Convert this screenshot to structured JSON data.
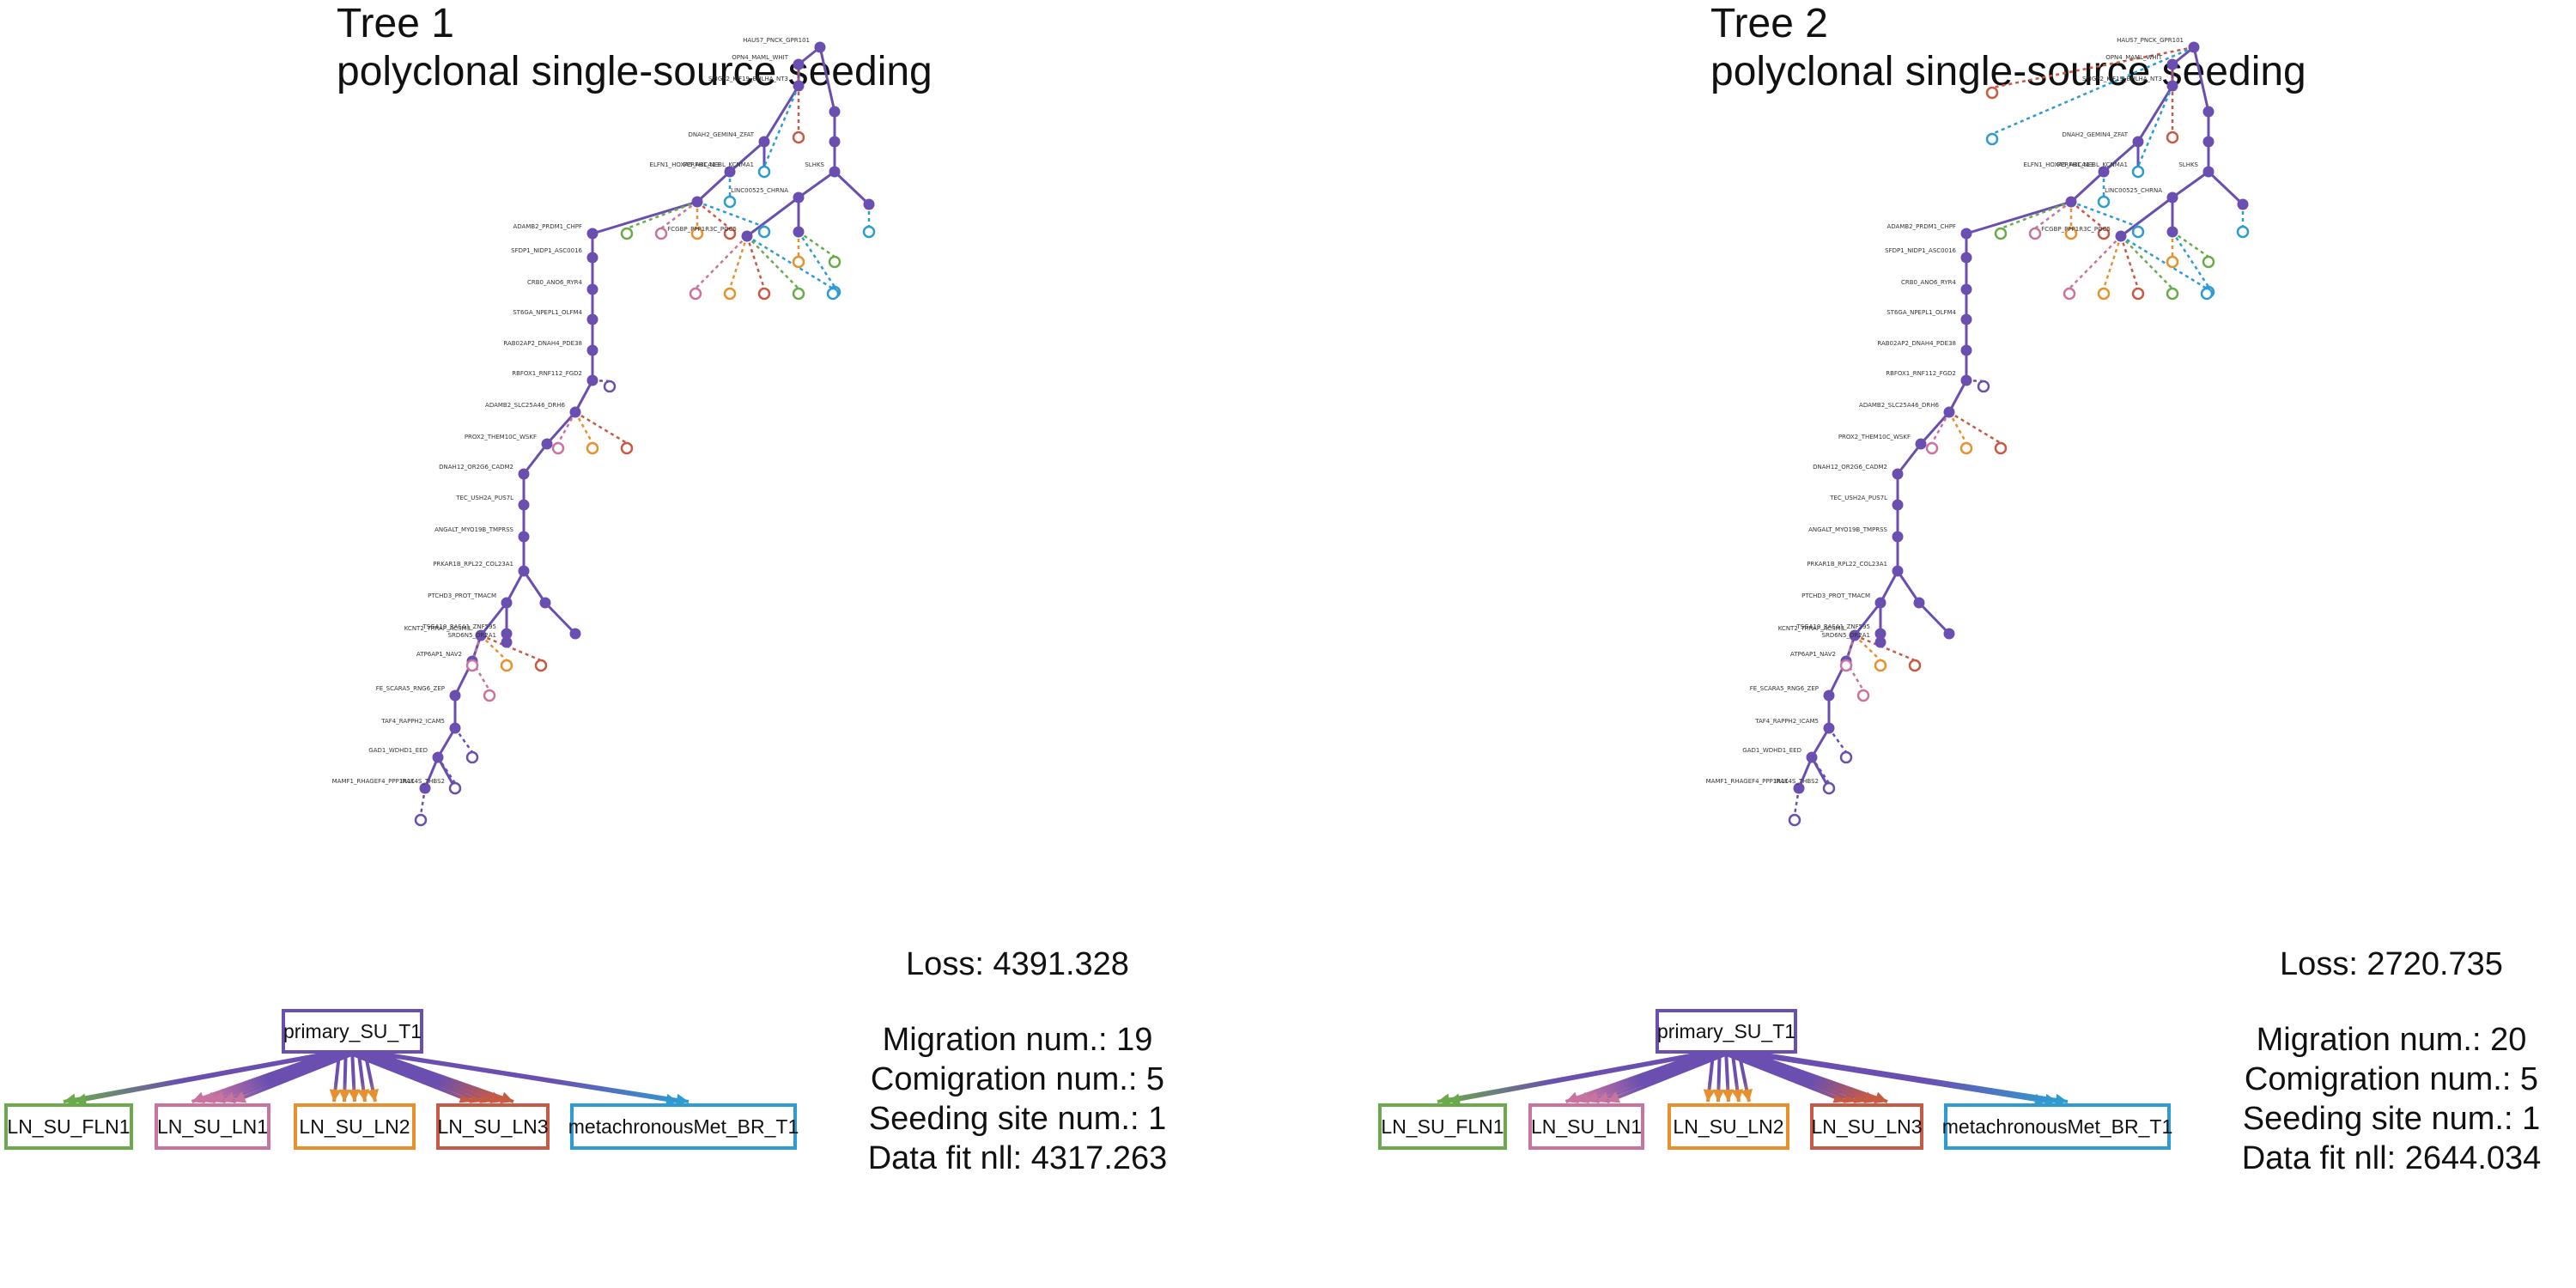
{
  "trees": [
    {
      "title": "Tree 1",
      "subtitle": "polyclonal single-source seeding",
      "metrics": {
        "loss": "Loss: 4391.328",
        "migration": "Migration num.: 19",
        "comigration": "Comigration num.: 5",
        "seeding": "Seeding site num.: 1",
        "datafit": "Data fit nll: 4317.263"
      },
      "migration_graph": {
        "source": "primary_SU_T1",
        "targets": [
          {
            "label": "LN_SU_FLN1",
            "color": "#6aaa4c",
            "edges": 2
          },
          {
            "label": "LN_SU_LN1",
            "color": "#c9739f",
            "edges": 5
          },
          {
            "label": "LN_SU_LN2",
            "color": "#e8902e",
            "edges": 5
          },
          {
            "label": "LN_SU_LN3",
            "color": "#c75a45",
            "edges": 5
          },
          {
            "label": "metachronousMet_BR_T1",
            "color": "#2f9bd1",
            "edges": 2
          }
        ]
      },
      "node_labels": [
        "HAUS7_PNCK_GPR101",
        "OPN4_MAML_WHIT",
        "STIGP2_KIF19_BHLHA_NT3",
        "DNAH2_GEMIN4_ZFAT",
        "PERFH1_NEBL_KCNMA1",
        "ELFN1_HOXA5_ABCA13",
        "SLHKS",
        "LINC00525_CHRNA",
        "ADAMB2_PRDM1_CHPF",
        "FCGBP_PPP1R3C_POC5",
        "SFDP1_NIDP1_ASC0016",
        "CRB0_ANO6_RYR4",
        "ST6GA_NPEPL1_OLFM4",
        "RAB02AP2_DNAH4_PDE38",
        "RBFOX1_RNF112_FGD2",
        "ADAMB2_SLC25A46_DRH6",
        "PROX2_THEM10C_WSKF",
        "DNAH12_OR2G6_CADM2",
        "TEC_USH2A_PUS7L",
        "ANGALT_MYO19B_TMPRSS",
        "PRKAR1B_RPL22_COL23A1",
        "PTCHD3_PROT_TMACM",
        "TSGA10_RASA1_ZNF595",
        "KCNT2_TRRAP_ACSM3",
        "SRD6N5_OR2A1",
        "ATP6AP1_NAV2",
        "FE_SCARA5_RNG6_ZEP",
        "TAF4_RAPPH2_ICAM5",
        "GAD1_WDHD1_EED",
        "MAMF1_RHAGEF4_PPP1R11",
        "IRAK4S_THBS2"
      ]
    },
    {
      "title": "Tree 2",
      "subtitle": "polyclonal single-source seeding",
      "metrics": {
        "loss": "Loss: 2720.735",
        "migration": "Migration num.: 20",
        "comigration": "Comigration num.: 5",
        "seeding": "Seeding site num.: 1",
        "datafit": "Data fit nll: 2644.034"
      },
      "migration_graph": {
        "source": "primary_SU_T1",
        "targets": [
          {
            "label": "LN_SU_FLN1",
            "color": "#6aaa4c",
            "edges": 2
          },
          {
            "label": "LN_SU_LN1",
            "color": "#c9739f",
            "edges": 5
          },
          {
            "label": "LN_SU_LN2",
            "color": "#e8902e",
            "edges": 5
          },
          {
            "label": "LN_SU_LN3",
            "color": "#c75a45",
            "edges": 5
          },
          {
            "label": "metachronousMet_BR_T1",
            "color": "#2f9bd1",
            "edges": 3
          }
        ]
      },
      "node_labels": [
        "HAUS7_PNCK_GPR101",
        "OPN4_MAML_WHIT",
        "STIGP2_KIF19_BHLHA_NT3",
        "DNAH2_GEMIN4_ZFAT",
        "PERFH1_NEBL_KCNMA1",
        "ELFN1_HOXA5_ABCA13",
        "SLHKS",
        "LINC00525_CHRNA",
        "ADAMB2_PRDM1_CHPF",
        "FCGBP_PPP1R3C_POC5",
        "SFDP1_NIDP1_ASC0016",
        "CRB0_ANO6_RYR4",
        "ST6GA_NPEPL1_OLFM4",
        "RAB02AP2_DNAH4_PDE38",
        "RBFOX1_RNF112_FGD2",
        "ADAMB2_SLC25A46_DRH6",
        "PROX2_THEM10C_WSKF",
        "DNAH12_OR2G6_CADM2",
        "TEC_USH2A_PUS7L",
        "ANGALT_MYO19B_TMPRSS",
        "PRKAR1B_RPL22_COL23A1",
        "PTCHD3_PROT_TMACM",
        "TSGA10_RASA1_ZNF595",
        "KCNT2_TRRAP_ACSM3",
        "SRD6N5_OR2A1",
        "ATP6AP1_NAV2",
        "FE_SCARA5_RNG6_ZEP",
        "TAF4_RAPPH2_ICAM5",
        "GAD1_WDHD1_EED",
        "MAMF1_RHAGEF4_PPP1R11",
        "IRAK4S_THBS2"
      ]
    }
  ],
  "colors": {
    "primary": "#6a4fb0",
    "FLN1": "#6aaa4c",
    "LN1": "#c9739f",
    "LN2": "#e8902e",
    "LN3": "#c75a45",
    "BR": "#2f9bd1"
  }
}
